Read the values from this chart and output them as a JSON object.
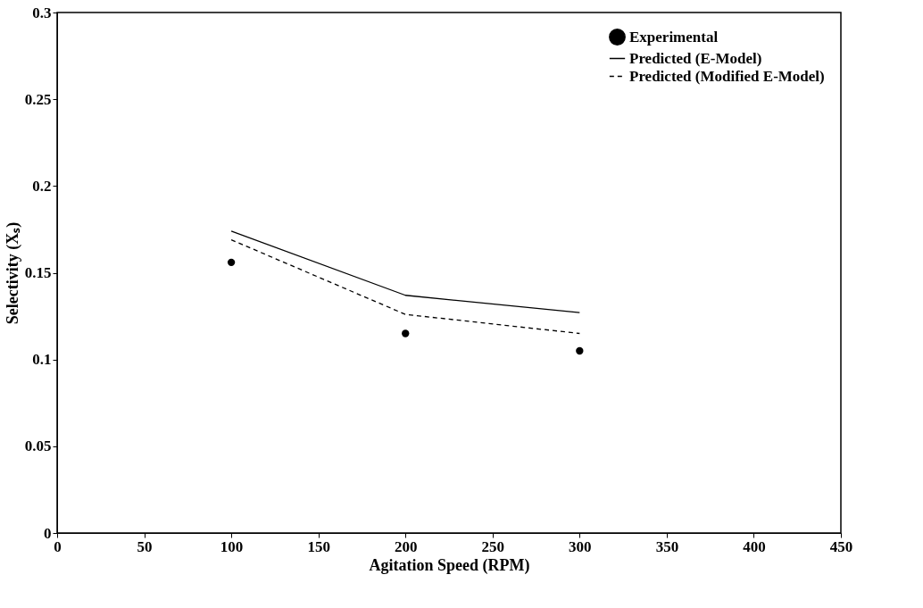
{
  "chart_data": {
    "type": "line",
    "xlabel": "Agitation Speed (RPM)",
    "ylabel": "Selectivity (Xₛ)",
    "x": [
      100,
      200,
      300
    ],
    "series": [
      {
        "name": "Experimental",
        "type": "scatter",
        "color": "#000000",
        "marker": "circle",
        "values": [
          0.156,
          0.115,
          0.105
        ]
      },
      {
        "name": "Predicted (E-Model)",
        "color": "#000000",
        "line_style": "solid",
        "values": [
          0.174,
          0.137,
          0.127
        ]
      },
      {
        "name": "Predicted (Modified E-Model)",
        "color": "#000000",
        "line_style": "dashed",
        "values": [
          0.169,
          0.126,
          0.115
        ]
      }
    ],
    "xlim": [
      0,
      450
    ],
    "xticks": [
      0,
      50,
      100,
      150,
      200,
      250,
      300,
      350,
      400,
      450
    ],
    "ylim": [
      0,
      0.3
    ],
    "yticks": [
      0,
      0.05,
      0.1,
      0.15,
      0.2,
      0.25,
      0.3
    ],
    "grid": false,
    "legend": "top right"
  }
}
